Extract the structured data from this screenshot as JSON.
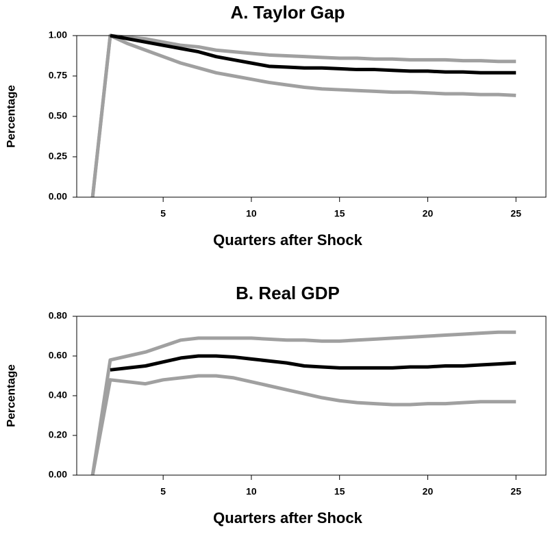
{
  "chart_data": [
    {
      "type": "line",
      "title": "A. Taylor Gap",
      "x_label": "Quarters after Shock",
      "y_label": "Percentage",
      "x": [
        1,
        2,
        3,
        4,
        5,
        6,
        7,
        8,
        9,
        10,
        11,
        12,
        13,
        14,
        15,
        16,
        17,
        18,
        19,
        20,
        21,
        22,
        23,
        24,
        25
      ],
      "series": [
        {
          "color": "#a0a0a0",
          "values": [
            0,
            1.0,
            0.99,
            0.98,
            0.96,
            0.94,
            0.93,
            0.91,
            0.9,
            0.89,
            0.88,
            0.875,
            0.87,
            0.865,
            0.86,
            0.86,
            0.855,
            0.855,
            0.85,
            0.85,
            0.85,
            0.845,
            0.845,
            0.84,
            0.84
          ]
        },
        {
          "color": "#a0a0a0",
          "values": [
            0,
            1.0,
            0.95,
            0.91,
            0.87,
            0.83,
            0.8,
            0.77,
            0.75,
            0.73,
            0.71,
            0.695,
            0.68,
            0.67,
            0.665,
            0.66,
            0.655,
            0.65,
            0.65,
            0.645,
            0.64,
            0.64,
            0.635,
            0.635,
            0.63
          ]
        },
        {
          "color": "#000000",
          "values": [
            null,
            1.0,
            0.98,
            0.96,
            0.94,
            0.92,
            0.9,
            0.87,
            0.85,
            0.83,
            0.81,
            0.805,
            0.8,
            0.8,
            0.795,
            0.79,
            0.79,
            0.785,
            0.78,
            0.78,
            0.775,
            0.775,
            0.77,
            0.77,
            0.77
          ]
        }
      ],
      "xlim": [
        0.1,
        26.7
      ],
      "xticks": [
        5,
        10,
        15,
        20,
        25
      ],
      "ylim": [
        0,
        1
      ],
      "yticks": [
        {
          "value": 0,
          "label": "0.00"
        },
        {
          "value": 0.25,
          "label": "0.25"
        },
        {
          "value": 0.5,
          "label": "0.50"
        },
        {
          "value": 0.75,
          "label": "0.75"
        },
        {
          "value": 1,
          "label": "1.00"
        }
      ]
    },
    {
      "type": "line",
      "title": "B. Real GDP",
      "x_label": "Quarters after Shock",
      "y_label": "Percentage",
      "x": [
        1,
        2,
        3,
        4,
        5,
        6,
        7,
        8,
        9,
        10,
        11,
        12,
        13,
        14,
        15,
        16,
        17,
        18,
        19,
        20,
        21,
        22,
        23,
        24,
        25
      ],
      "series": [
        {
          "color": "#a0a0a0",
          "values": [
            0,
            0.58,
            0.6,
            0.62,
            0.65,
            0.68,
            0.69,
            0.69,
            0.69,
            0.69,
            0.685,
            0.68,
            0.68,
            0.675,
            0.675,
            0.68,
            0.685,
            0.69,
            0.695,
            0.7,
            0.705,
            0.71,
            0.715,
            0.72,
            0.72
          ]
        },
        {
          "color": "#a0a0a0",
          "values": [
            0,
            0.48,
            0.47,
            0.46,
            0.48,
            0.49,
            0.5,
            0.5,
            0.49,
            0.47,
            0.45,
            0.43,
            0.41,
            0.39,
            0.375,
            0.365,
            0.36,
            0.355,
            0.355,
            0.36,
            0.36,
            0.365,
            0.37,
            0.37,
            0.37
          ]
        },
        {
          "color": "#000000",
          "values": [
            null,
            0.53,
            0.54,
            0.55,
            0.57,
            0.59,
            0.6,
            0.6,
            0.595,
            0.585,
            0.575,
            0.565,
            0.55,
            0.545,
            0.54,
            0.54,
            0.54,
            0.54,
            0.545,
            0.545,
            0.55,
            0.55,
            0.555,
            0.56,
            0.565
          ]
        }
      ],
      "xlim": [
        0.1,
        26.7
      ],
      "xticks": [
        5,
        10,
        15,
        20,
        25
      ],
      "ylim": [
        0,
        0.8
      ],
      "yticks": [
        {
          "value": 0,
          "label": "0.00"
        },
        {
          "value": 0.2,
          "label": "0.20"
        },
        {
          "value": 0.4,
          "label": "0.40"
        },
        {
          "value": 0.6,
          "label": "0.60"
        },
        {
          "value": 0.8,
          "label": "0.80"
        }
      ]
    }
  ]
}
